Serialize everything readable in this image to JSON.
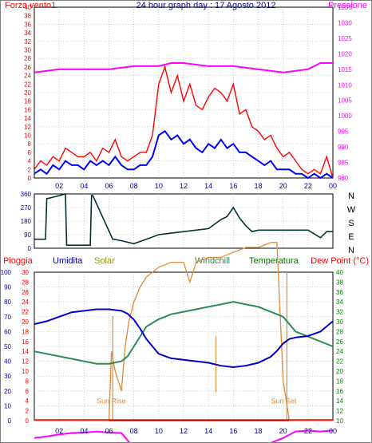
{
  "colors": {
    "wind": "#ff0000",
    "gust_line": "#0000ff",
    "pressure": "#ff00ff",
    "direction": "#003333",
    "rain": "#ff0000",
    "humidity": "#0000cc",
    "solar": "#e08a3a",
    "windchill": "#2e8b57",
    "temperature": "#007700",
    "dewpoint": "#ff00ff",
    "grid": "#b0b0b0",
    "axis_blue": "#000099",
    "axis_red": "#ff0000",
    "axis_green": "#008000"
  },
  "chart_data": [
    {
      "type": "line",
      "title": "24 hour graph day : 17 Agosto 2012",
      "left_label": "Forza vento1",
      "right_label": "Pressione",
      "x_ticks": [
        "02",
        "04",
        "06",
        "08",
        "10",
        "12",
        "14",
        "16",
        "18",
        "20",
        "22",
        "00"
      ],
      "left_ticks": [
        "40",
        "38",
        "36",
        "34",
        "32",
        "30",
        "28",
        "26",
        "24",
        "22",
        "20",
        "18",
        "16",
        "14",
        "12",
        "10",
        "8",
        "6",
        "4",
        "2",
        "0"
      ],
      "right_ticks": [
        "1035",
        "1030",
        "1025",
        "1020",
        "1015",
        "1010",
        "1005",
        "1000",
        "995",
        "990",
        "985",
        "980"
      ],
      "xlim": [
        0,
        24
      ],
      "ylim_left": [
        0,
        40
      ],
      "ylim_right": [
        980,
        1035
      ],
      "series": [
        {
          "key": "wind_peak",
          "x": [
            0,
            0.5,
            1,
            1.5,
            2,
            2.5,
            3,
            3.5,
            4,
            4.5,
            5,
            5.5,
            6,
            6.5,
            7,
            7.5,
            8,
            8.5,
            9,
            9.5,
            10,
            10.5,
            11,
            11.5,
            12,
            12.5,
            13,
            13.5,
            14,
            14.5,
            15,
            15.5,
            16,
            16.5,
            17,
            17.5,
            18,
            18.5,
            19,
            19.5,
            20,
            20.5,
            21,
            21.5,
            22,
            22.5,
            23,
            23.5,
            24
          ],
          "values": [
            2,
            4,
            3,
            5,
            4,
            7,
            6,
            5,
            5,
            6,
            4,
            7,
            6,
            9,
            5,
            4,
            5,
            6,
            6,
            10,
            22,
            26,
            20,
            24,
            18,
            22,
            17,
            16,
            19,
            21,
            20,
            18,
            22,
            15,
            16,
            12,
            11,
            9,
            10,
            7,
            5,
            6,
            4,
            2,
            1,
            2,
            1,
            5,
            0
          ]
        },
        {
          "key": "wind_avg",
          "x": [
            0,
            0.5,
            1,
            1.5,
            2,
            2.5,
            3,
            3.5,
            4,
            4.5,
            5,
            5.5,
            6,
            6.5,
            7,
            7.5,
            8,
            8.5,
            9,
            9.5,
            10,
            10.5,
            11,
            11.5,
            12,
            12.5,
            13,
            13.5,
            14,
            14.5,
            15,
            15.5,
            16,
            16.5,
            17,
            17.5,
            18,
            18.5,
            19,
            19.5,
            20,
            20.5,
            21,
            21.5,
            22,
            22.5,
            23,
            23.5,
            24
          ],
          "values": [
            1,
            2,
            1,
            3,
            2,
            4,
            3,
            3,
            2,
            4,
            3,
            4,
            3,
            5,
            3,
            2,
            2,
            3,
            3,
            5,
            10,
            11,
            9,
            10,
            8,
            9,
            7,
            6,
            8,
            7,
            9,
            7,
            8,
            6,
            6,
            5,
            4,
            3,
            4,
            2,
            2,
            2,
            1,
            1,
            0,
            1,
            0,
            1,
            0
          ]
        },
        {
          "key": "pressure",
          "x": [
            0,
            2,
            4,
            6,
            8,
            10,
            11,
            12,
            14,
            16,
            18,
            20,
            22,
            23,
            24
          ],
          "values": [
            1014,
            1015,
            1015,
            1015,
            1016,
            1016,
            1017,
            1017,
            1016,
            1016,
            1015,
            1014,
            1015,
            1017,
            1017
          ]
        }
      ]
    },
    {
      "type": "line",
      "left_ticks": [
        "360",
        "270",
        "180",
        "90",
        "0"
      ],
      "right_labels": [
        "N",
        "W",
        "S",
        "E",
        "N"
      ],
      "xlim": [
        0,
        24
      ],
      "ylim": [
        0,
        360
      ],
      "series": [
        {
          "key": "direction",
          "x": [
            0,
            0.9,
            1,
            1.1,
            2.5,
            2.6,
            2.7,
            4.5,
            4.6,
            4.7,
            6.3,
            6.4,
            7,
            8,
            9,
            10,
            11,
            12,
            13,
            14,
            15,
            15.5,
            16,
            16.5,
            17,
            17.5,
            18,
            19,
            20,
            21,
            22,
            23,
            23.5,
            24
          ],
          "values": [
            60,
            60,
            330,
            330,
            360,
            20,
            20,
            20,
            350,
            350,
            60,
            60,
            50,
            30,
            60,
            90,
            100,
            110,
            120,
            130,
            190,
            210,
            270,
            200,
            150,
            110,
            120,
            120,
            120,
            120,
            120,
            70,
            110,
            110
          ]
        }
      ]
    },
    {
      "type": "line",
      "header_labels": {
        "rain": "Pioggia",
        "humidity": "Umidita",
        "solar": "Solar",
        "windchill": "Windchill",
        "temperature": "Temperatura",
        "dewpoint": "Dew Point (°C)"
      },
      "annotations": {
        "sunrise": "Sun Rise",
        "sunset": "Sun Set"
      },
      "humidity_ticks": [
        "100",
        "90",
        "80",
        "70",
        "60",
        "50",
        "40",
        "30",
        "20",
        "10",
        "0"
      ],
      "rain_ticks": [
        "30",
        "28",
        "26",
        "24",
        "22",
        "20",
        "18",
        "16",
        "14",
        "12",
        "10",
        "8",
        "6",
        "4",
        "2",
        "0"
      ],
      "temp_ticks": [
        "40",
        "38",
        "36",
        "34",
        "32",
        "30",
        "28",
        "26",
        "24",
        "22",
        "20",
        "18",
        "16",
        "14",
        "12",
        "10"
      ],
      "x_ticks": [
        "02",
        "04",
        "06",
        "08",
        "10",
        "12",
        "14",
        "16",
        "18",
        "20",
        "22",
        "00"
      ],
      "xlim": [
        0,
        24
      ],
      "ylim_humidity": [
        0,
        100
      ],
      "ylim_temperature": [
        10,
        40
      ],
      "sunrise_hour": 6.3,
      "sunset_hour": 20.3,
      "series": [
        {
          "key": "humidity",
          "x": [
            0,
            1,
            2,
            3,
            4,
            5,
            6,
            7,
            7.5,
            8,
            8.5,
            9,
            9.5,
            10,
            11,
            12,
            13,
            14,
            15,
            16,
            17,
            18,
            19,
            19.5,
            20,
            20.5,
            21,
            22,
            23,
            24
          ],
          "values": [
            65,
            67,
            70,
            73,
            74,
            75,
            75,
            74,
            72,
            68,
            62,
            55,
            50,
            45,
            42,
            41,
            40,
            39,
            37,
            36,
            37,
            39,
            43,
            47,
            52,
            55,
            56,
            57,
            60,
            67
          ]
        },
        {
          "key": "temperature",
          "x": [
            0,
            1,
            2,
            3,
            4,
            5,
            6,
            7,
            7.5,
            8,
            8.5,
            9,
            10,
            11,
            12,
            13,
            14,
            15,
            16,
            17,
            18,
            19,
            20,
            21,
            22,
            23,
            24
          ],
          "values": [
            24,
            23.5,
            23,
            22.5,
            22,
            21.5,
            21.5,
            22,
            23,
            25,
            27,
            29,
            30.5,
            31.5,
            32,
            32.5,
            33,
            33.5,
            34,
            33.5,
            33,
            32,
            31,
            28,
            27,
            26,
            25
          ]
        },
        {
          "key": "solar",
          "x": [
            0,
            6,
            6.2,
            6.5,
            7,
            7.3,
            7.6,
            8,
            8.5,
            9,
            10,
            11,
            12,
            12.5,
            13,
            14,
            15,
            16,
            17,
            18,
            19,
            19.5,
            20,
            20.5,
            24
          ],
          "values": [
            0,
            0,
            14,
            10,
            6,
            15,
            20,
            24,
            27,
            29,
            31,
            32,
            32,
            28,
            32,
            33,
            33,
            34,
            35,
            35,
            36,
            36,
            8,
            0,
            0
          ]
        },
        {
          "key": "dewpoint",
          "x": [
            0,
            1,
            2,
            3,
            4,
            5,
            6,
            7,
            8,
            9,
            10,
            11,
            12,
            13,
            14,
            15,
            16,
            17,
            18,
            19,
            20,
            21,
            22,
            23,
            24
          ],
          "values": [
            6.5,
            6.8,
            7.2,
            7.5,
            7.6,
            7.8,
            7.6,
            7.5,
            4.5,
            4.2,
            4,
            4.2,
            4,
            4.3,
            4.5,
            4.8,
            4.5,
            4.2,
            5,
            5.5,
            6.5,
            7.8,
            8,
            7.8,
            8
          ]
        }
      ]
    }
  ]
}
